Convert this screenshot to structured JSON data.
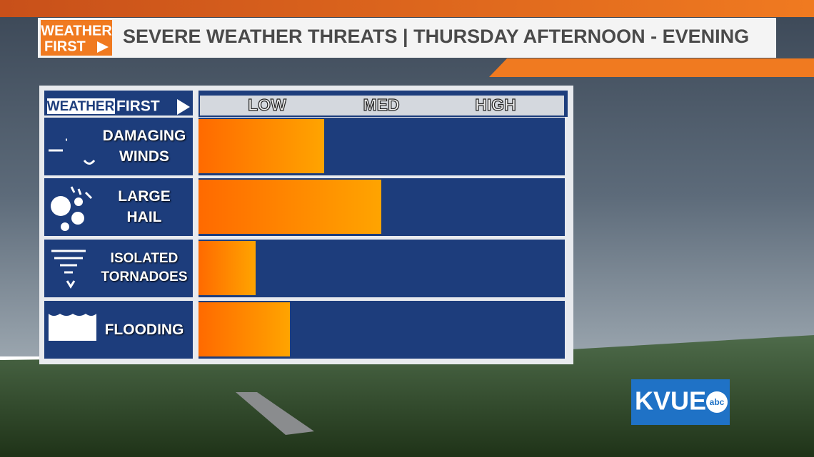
{
  "header": {
    "logo_top": "WEATHER",
    "logo_bottom": "FIRST",
    "title": "SEVERE WEATHER THREATS | THURSDAY AFTERNOON - EVENING"
  },
  "panel_logo": {
    "left": "WEATHER",
    "right": "FIRST"
  },
  "chart_data": {
    "type": "bar",
    "orientation": "horizontal",
    "categories": [
      "DAMAGING WINDS",
      "LARGE HAIL",
      "ISOLATED TORNADOES",
      "FLOODING"
    ],
    "values": [
      1.5,
      2.0,
      0.9,
      1.2
    ],
    "xlim": [
      0.4,
      3.6
    ],
    "xticks": [
      {
        "value": 1,
        "label": "LOW"
      },
      {
        "value": 2,
        "label": "MED"
      },
      {
        "value": 3,
        "label": "HIGH"
      }
    ],
    "color": "#ff8a00"
  },
  "station": {
    "name": "KVUE",
    "network": "abc"
  }
}
